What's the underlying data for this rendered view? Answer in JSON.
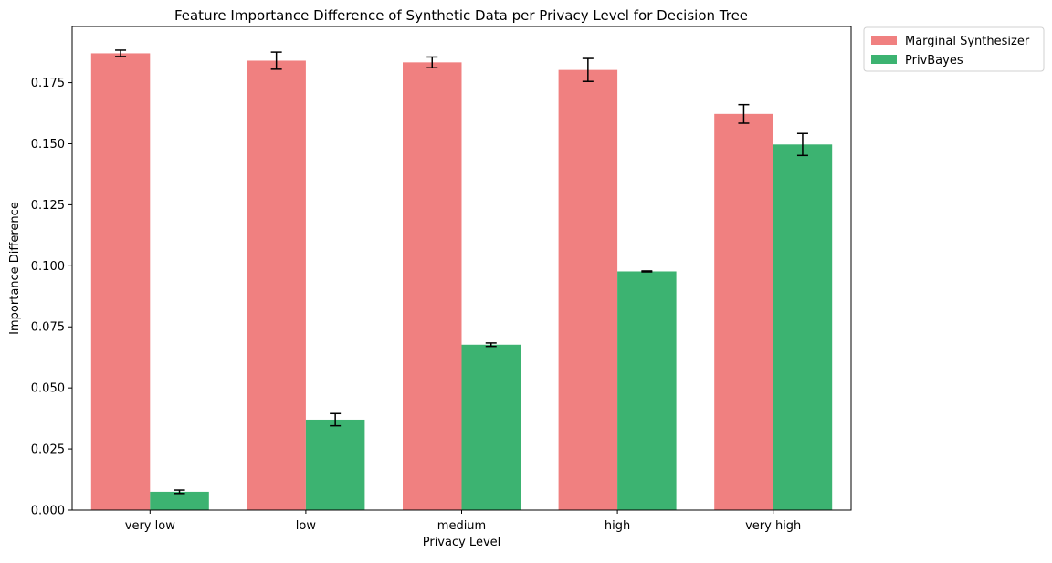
{
  "chart_data": {
    "type": "bar",
    "title": "Feature Importance Difference of Synthetic Data per Privacy Level for Decision Tree",
    "xlabel": "Privacy Level",
    "ylabel": "Importance Difference",
    "categories": [
      "very low",
      "low",
      "medium",
      "high",
      "very high"
    ],
    "ylim": [
      0,
      0.198
    ],
    "yticks": [
      0.0,
      0.025,
      0.05,
      0.075,
      0.1,
      0.125,
      0.15,
      0.175
    ],
    "ytick_labels": [
      "0.000",
      "0.025",
      "0.050",
      "0.075",
      "0.100",
      "0.125",
      "0.150",
      "0.175"
    ],
    "grid": false,
    "legend_position": "outside-top-right",
    "series": [
      {
        "name": "Marginal Synthesizer",
        "color": "#f08080",
        "values": [
          0.187,
          0.184,
          0.1833,
          0.1802,
          0.1622
        ],
        "errors": [
          0.0013,
          0.0035,
          0.0022,
          0.0047,
          0.0038
        ]
      },
      {
        "name": "PrivBayes",
        "color": "#3cb371",
        "values": [
          0.0075,
          0.037,
          0.0677,
          0.0977,
          0.1497
        ],
        "errors": [
          0.0007,
          0.0025,
          0.0007,
          0.0002,
          0.0045
        ]
      }
    ]
  }
}
